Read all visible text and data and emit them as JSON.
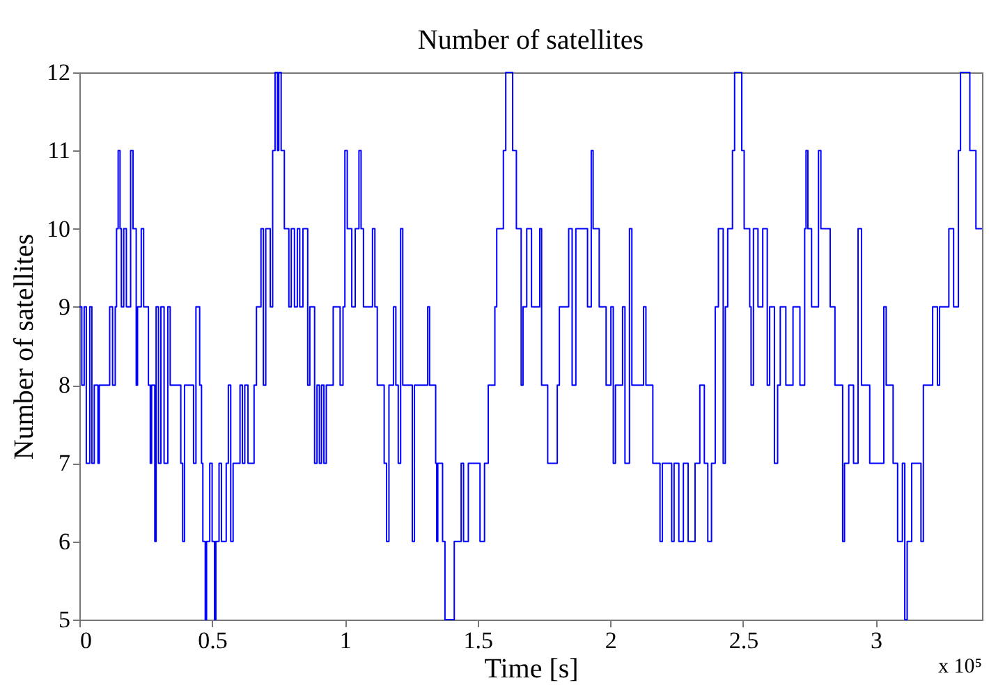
{
  "chart_data": {
    "type": "step",
    "title": "Number of satellites",
    "xlabel": "Time [s]",
    "ylabel": "Number of satellites",
    "annotations": [
      "x 10⁵"
    ],
    "xlim": [
      0,
      3.4
    ],
    "xticks": [
      0,
      0.5,
      1,
      1.5,
      2,
      2.5,
      3
    ],
    "ylim": [
      5,
      12
    ],
    "yticks": [
      5,
      6,
      7,
      8,
      9,
      10,
      11,
      12
    ],
    "grid": false,
    "series": [
      {
        "color": "#0000ff",
        "line_style": "solid",
        "x": [
          0.0,
          0.009,
          0.018,
          0.026,
          0.039,
          0.047,
          0.056,
          0.07,
          0.075,
          0.114,
          0.125,
          0.135,
          0.14,
          0.146,
          0.153,
          0.158,
          0.167,
          0.177,
          0.193,
          0.202,
          0.214,
          0.219,
          0.233,
          0.242,
          0.26,
          0.267,
          0.272,
          0.284,
          0.289,
          0.298,
          0.307,
          0.319,
          0.333,
          0.342,
          0.382,
          0.389,
          0.396,
          0.43,
          0.439,
          0.453,
          0.46,
          0.465,
          0.474,
          0.479,
          0.491,
          0.5,
          0.509,
          0.514,
          0.526,
          0.535,
          0.553,
          0.561,
          0.57,
          0.579,
          0.605,
          0.614,
          0.623,
          0.635,
          0.658,
          0.667,
          0.684,
          0.693,
          0.702,
          0.719,
          0.728,
          0.737,
          0.746,
          0.751,
          0.76,
          0.772,
          0.789,
          0.798,
          0.81,
          0.821,
          0.83,
          0.842,
          0.86,
          0.868,
          0.886,
          0.895,
          0.904,
          0.912,
          0.921,
          0.93,
          0.956,
          0.982,
          0.993,
          1.0,
          1.009,
          1.026,
          1.039,
          1.053,
          1.061,
          1.07,
          1.104,
          1.113,
          1.122,
          1.148,
          1.157,
          1.166,
          1.183,
          1.192,
          1.201,
          1.21,
          1.218,
          1.254,
          1.262,
          1.312,
          1.319,
          1.342,
          1.346,
          1.35,
          1.368,
          1.377,
          1.412,
          1.438,
          1.447,
          1.465,
          1.509,
          1.526,
          1.54,
          1.565,
          1.572,
          1.597,
          1.606,
          1.632,
          1.646,
          1.664,
          1.671,
          1.685,
          1.703,
          1.734,
          1.741,
          1.764,
          1.8,
          1.808,
          1.843,
          1.856,
          1.87,
          1.914,
          1.928,
          1.935,
          1.958,
          1.984,
          2.002,
          2.011,
          2.019,
          2.046,
          2.055,
          2.072,
          2.081,
          2.125,
          2.134,
          2.16,
          2.187,
          2.196,
          2.231,
          2.24,
          2.258,
          2.275,
          2.293,
          2.319,
          2.337,
          2.354,
          2.367,
          2.381,
          2.395,
          2.407,
          2.425,
          2.433,
          2.442,
          2.46,
          2.468,
          2.495,
          2.504,
          2.525,
          2.53,
          2.539,
          2.556,
          2.574,
          2.591,
          2.6,
          2.618,
          2.63,
          2.64,
          2.661,
          2.688,
          2.714,
          2.732,
          2.737,
          2.744,
          2.758,
          2.784,
          2.793,
          2.828,
          2.846,
          2.875,
          2.882,
          2.898,
          2.916,
          2.933,
          2.946,
          2.977,
          3.03,
          3.039,
          3.065,
          3.082,
          3.1,
          3.109,
          3.118,
          3.135,
          3.17,
          3.179,
          3.214,
          3.232,
          3.24,
          3.275,
          3.293,
          3.311,
          3.319,
          3.354,
          3.377,
          3.4
        ],
        "values": [
          9,
          8,
          9,
          7,
          9,
          7,
          8,
          7,
          8,
          9,
          8,
          9,
          10,
          11,
          10,
          9,
          10,
          9,
          11,
          10,
          8,
          9,
          10,
          9,
          8,
          7,
          8,
          6,
          9,
          7,
          9,
          7,
          9,
          8,
          7,
          6,
          8,
          7,
          9,
          8,
          7,
          6,
          5,
          6,
          7,
          6,
          5,
          6,
          7,
          6,
          7,
          8,
          6,
          7,
          8,
          7,
          8,
          7,
          8,
          9,
          10,
          8,
          10,
          9,
          11,
          12,
          11,
          12,
          11,
          10,
          9,
          10,
          9,
          10,
          9,
          10,
          8,
          9,
          7,
          8,
          7,
          8,
          7,
          8,
          9,
          8,
          9,
          11,
          10,
          9,
          10,
          11,
          10,
          9,
          10,
          9,
          8,
          7,
          6,
          8,
          9,
          8,
          7,
          10,
          8,
          6,
          8,
          9,
          8,
          7,
          6,
          7,
          6,
          5,
          6,
          7,
          6,
          7,
          6,
          7,
          8,
          9,
          10,
          11,
          12,
          11,
          10,
          8,
          9,
          10,
          9,
          10,
          8,
          7,
          8,
          9,
          10,
          8,
          10,
          9,
          11,
          10,
          9,
          8,
          9,
          7,
          8,
          9,
          7,
          10,
          8,
          9,
          8,
          7,
          6,
          7,
          6,
          7,
          6,
          7,
          6,
          7,
          8,
          7,
          6,
          7,
          9,
          10,
          7,
          9,
          10,
          11,
          12,
          11,
          10,
          9,
          8,
          10,
          9,
          10,
          8,
          9,
          7,
          8,
          9,
          8,
          9,
          8,
          10,
          11,
          10,
          9,
          11,
          10,
          9,
          8,
          6,
          7,
          8,
          7,
          10,
          8,
          7,
          9,
          8,
          7,
          6,
          7,
          5,
          6,
          7,
          6,
          8,
          9,
          8,
          9,
          10,
          9,
          11,
          12,
          11,
          10,
          10
        ]
      }
    ]
  }
}
